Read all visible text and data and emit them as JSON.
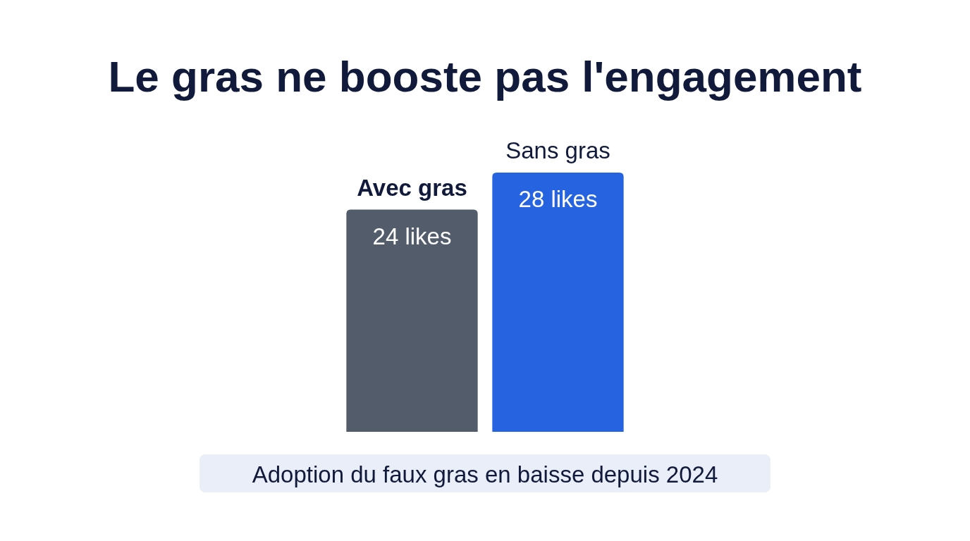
{
  "chart_data": {
    "type": "bar",
    "title": "Le gras ne booste pas l'engagement",
    "categories": [
      "Avec gras",
      "Sans gras"
    ],
    "values": [
      24,
      28
    ],
    "colors": [
      "#525c6b",
      "#2563e0"
    ],
    "value_labels": [
      "24 likes",
      "28 likes"
    ],
    "annotations": [
      "Adoption du faux gras en baisse depuis 2024"
    ]
  }
}
